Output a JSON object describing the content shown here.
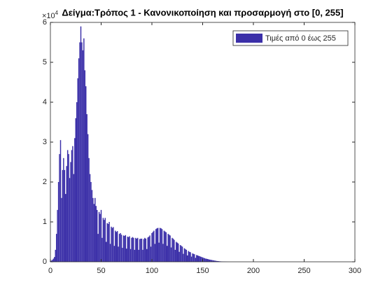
{
  "chart_data": {
    "type": "bar",
    "title": "Δείγμα:Τρόπος 1 - Κανονικοποίηση και προσαρμογή στο [0, 255]",
    "y_multiplier": {
      "base": "×10",
      "exponent": "4"
    },
    "x": [
      0,
      1,
      2,
      3,
      4,
      5,
      6,
      7,
      8,
      9,
      10,
      11,
      12,
      13,
      14,
      15,
      16,
      17,
      18,
      19,
      20,
      21,
      22,
      23,
      24,
      25,
      26,
      27,
      28,
      29,
      30,
      31,
      32,
      33,
      34,
      35,
      36,
      37,
      38,
      39,
      40,
      41,
      42,
      43,
      44,
      45,
      46,
      47,
      48,
      49,
      50,
      51,
      52,
      53,
      54,
      55,
      56,
      57,
      58,
      59,
      60,
      61,
      62,
      63,
      64,
      65,
      66,
      67,
      68,
      69,
      70,
      71,
      72,
      73,
      74,
      75,
      76,
      77,
      78,
      79,
      80,
      81,
      82,
      83,
      84,
      85,
      86,
      87,
      88,
      89,
      90,
      91,
      92,
      93,
      94,
      95,
      96,
      97,
      98,
      99,
      100,
      101,
      102,
      103,
      104,
      105,
      106,
      107,
      108,
      109,
      110,
      111,
      112,
      113,
      114,
      115,
      116,
      117,
      118,
      119,
      120,
      121,
      122,
      123,
      124,
      125,
      126,
      127,
      128,
      129,
      130,
      131,
      132,
      133,
      134,
      135,
      136,
      137,
      138,
      139,
      140,
      141,
      142,
      143,
      144,
      145,
      146,
      147,
      148,
      149,
      150,
      151,
      152,
      153,
      154,
      155,
      156,
      157,
      158,
      159,
      160,
      161,
      162,
      163,
      164,
      165,
      166,
      167,
      168,
      169,
      170,
      171,
      172,
      173,
      174,
      175
    ],
    "series": [
      {
        "name": "Τιμές από 0 έως 255",
        "color": "#3b2fa8",
        "values": [
          0.02,
          0.03,
          0.05,
          0.08,
          0.12,
          0.3,
          0.7,
          1.3,
          2.0,
          2.7,
          3.05,
          1.6,
          2.3,
          2.6,
          2.3,
          1.7,
          2.4,
          2.8,
          2.7,
          2.1,
          2.5,
          2.8,
          2.9,
          2.2,
          3.1,
          3.6,
          4.0,
          4.6,
          5.1,
          5.5,
          5.9,
          5.5,
          5.3,
          5.6,
          4.8,
          4.4,
          3.7,
          3.2,
          2.6,
          2.2,
          2.0,
          1.8,
          1.6,
          1.45,
          1.6,
          1.4,
          1.3,
          0.7,
          1.25,
          1.2,
          1.3,
          0.6,
          1.1,
          1.05,
          1.1,
          0.5,
          0.97,
          0.95,
          1.0,
          0.45,
          0.88,
          0.85,
          0.87,
          0.4,
          0.78,
          0.75,
          0.77,
          0.38,
          0.7,
          0.72,
          0.68,
          0.35,
          0.66,
          0.65,
          0.67,
          0.33,
          0.63,
          0.62,
          0.64,
          0.32,
          0.6,
          0.62,
          0.6,
          0.3,
          0.6,
          0.58,
          0.6,
          0.3,
          0.57,
          0.58,
          0.58,
          0.3,
          0.57,
          0.6,
          0.58,
          0.32,
          0.61,
          0.63,
          0.66,
          0.38,
          0.72,
          0.75,
          0.78,
          0.45,
          0.82,
          0.84,
          0.85,
          0.48,
          0.85,
          0.84,
          0.82,
          0.45,
          0.78,
          0.76,
          0.74,
          0.4,
          0.7,
          0.68,
          0.66,
          0.36,
          0.6,
          0.58,
          0.55,
          0.3,
          0.5,
          0.48,
          0.46,
          0.25,
          0.42,
          0.4,
          0.38,
          0.2,
          0.34,
          0.32,
          0.3,
          0.16,
          0.27,
          0.25,
          0.24,
          0.13,
          0.21,
          0.2,
          0.19,
          0.1,
          0.17,
          0.16,
          0.15,
          0.14,
          0.13,
          0.12,
          0.11,
          0.1,
          0.09,
          0.08,
          0.075,
          0.07,
          0.06,
          0.055,
          0.05,
          0.045,
          0.04,
          0.035,
          0.03,
          0.025,
          0.02,
          0.018,
          0.015,
          0.012,
          0.01,
          0.008,
          0.006,
          0.005,
          0.004,
          0.003,
          0.002,
          0.001
        ]
      }
    ],
    "xlim": [
      0,
      300
    ],
    "xticks": [
      0,
      50,
      100,
      150,
      200,
      250,
      300
    ],
    "ylim": [
      0,
      6
    ],
    "yticks": [
      0,
      1,
      2,
      3,
      4,
      5,
      6
    ],
    "legend": "top-right"
  }
}
